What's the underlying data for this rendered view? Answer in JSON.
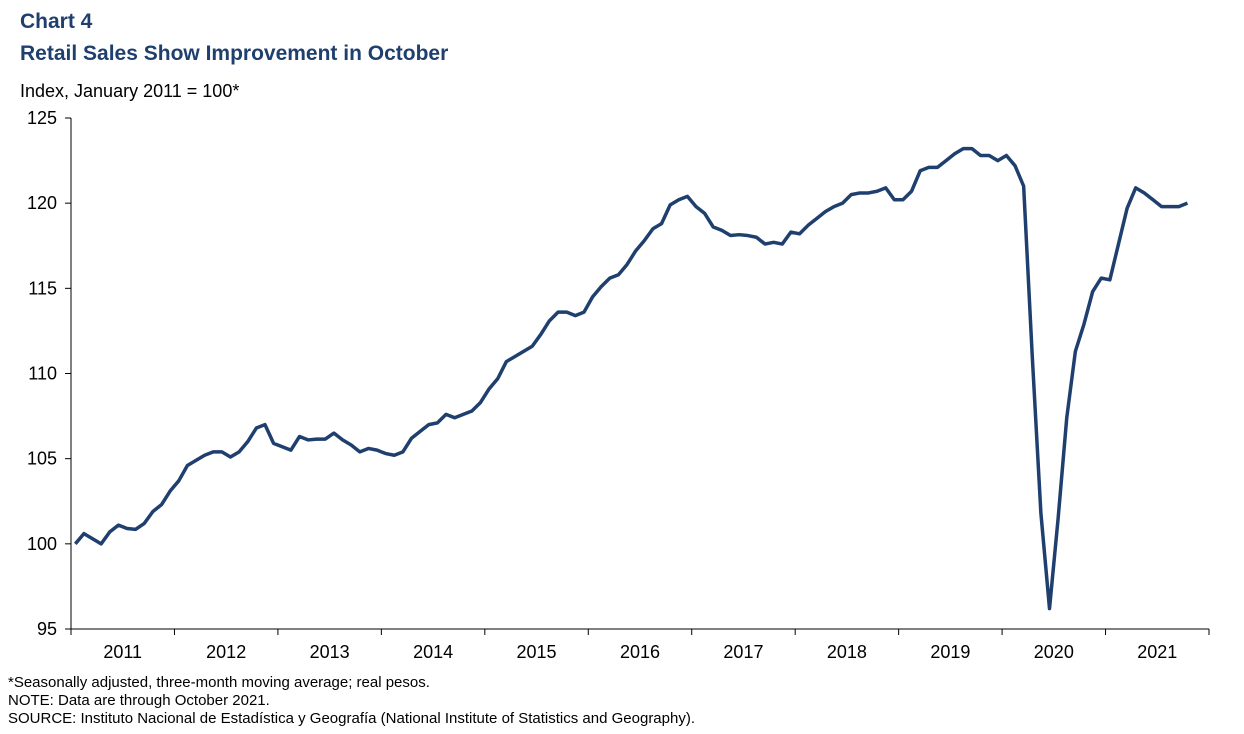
{
  "chart_data": {
    "type": "line",
    "title": "Chart 4",
    "subtitle": "Retail Sales Show Improvement  in October",
    "y_label": "Index, January 2011 = 100*",
    "notes": [
      "*Seasonally adjusted, three-month moving average; real pesos.",
      "NOTE:  Data are through October 2021.",
      "SOURCE:  Instituto Nacional de Estadística y Geografía (National Institute of Statistics and Geography)."
    ],
    "categories": [
      null,
      null,
      null,
      null,
      null,
      null,
      "2011",
      null,
      null,
      null,
      null,
      null,
      null,
      null,
      null,
      null,
      null,
      null,
      "2012",
      null,
      null,
      null,
      null,
      null,
      null,
      null,
      null,
      null,
      null,
      null,
      "2013",
      null,
      null,
      null,
      null,
      null,
      null,
      null,
      null,
      null,
      null,
      null,
      "2014",
      null,
      null,
      null,
      null,
      null,
      null,
      null,
      null,
      null,
      null,
      null,
      "2015",
      null,
      null,
      null,
      null,
      null,
      null,
      null,
      null,
      null,
      null,
      null,
      "2016",
      null,
      null,
      null,
      null,
      null,
      null,
      null,
      null,
      null,
      null,
      null,
      "2017",
      null,
      null,
      null,
      null,
      null,
      null,
      null,
      null,
      null,
      null,
      null,
      "2018",
      null,
      null,
      null,
      null,
      null,
      null,
      null,
      null,
      null,
      null,
      null,
      "2019",
      null,
      null,
      null,
      null,
      null,
      null,
      null,
      null,
      null,
      null,
      null,
      "2020",
      null,
      null,
      null,
      null,
      null,
      null,
      null,
      null,
      null,
      null,
      null,
      "2021",
      null,
      null,
      null,
      null,
      null
    ],
    "series": [
      {
        "name": "Retail sales",
        "color": "#1f3f6e",
        "values": [
          100.0,
          100.6,
          100.3,
          100.0,
          100.7,
          101.1,
          100.9,
          100.85,
          101.2,
          101.9,
          102.3,
          103.1,
          103.7,
          104.6,
          104.9,
          105.2,
          105.4,
          105.4,
          105.1,
          105.4,
          106.0,
          106.8,
          107.0,
          105.9,
          105.7,
          105.5,
          106.3,
          106.1,
          106.15,
          106.15,
          106.5,
          106.1,
          105.8,
          105.4,
          105.6,
          105.5,
          105.3,
          105.2,
          105.4,
          106.2,
          106.6,
          107.0,
          107.1,
          107.6,
          107.4,
          107.6,
          107.8,
          108.3,
          109.1,
          109.7,
          110.7,
          111.0,
          111.3,
          111.6,
          112.3,
          113.1,
          113.6,
          113.6,
          113.4,
          113.6,
          114.5,
          115.1,
          115.6,
          115.8,
          116.4,
          117.2,
          117.8,
          118.5,
          118.8,
          119.9,
          120.2,
          120.4,
          119.8,
          119.4,
          118.6,
          118.4,
          118.1,
          118.15,
          118.1,
          118.0,
          117.6,
          117.7,
          117.6,
          118.3,
          118.2,
          118.7,
          119.1,
          119.5,
          119.8,
          120.0,
          120.5,
          120.6,
          120.6,
          120.7,
          120.9,
          120.2,
          120.2,
          120.7,
          121.9,
          122.1,
          122.1,
          122.5,
          122.9,
          123.2,
          123.2,
          122.8,
          122.8,
          122.5,
          122.8,
          122.2,
          121.0,
          111.0,
          101.8,
          96.2,
          101.5,
          107.4,
          111.3,
          112.9,
          114.8,
          115.6,
          115.5,
          117.6,
          119.7,
          120.9,
          120.6,
          120.2,
          119.8,
          119.8,
          119.8,
          120.0,
          null,
          null
        ]
      }
    ],
    "ylim": [
      95,
      125
    ],
    "yticks": [
      95,
      100,
      105,
      110,
      115,
      120,
      125
    ],
    "grid": false
  }
}
